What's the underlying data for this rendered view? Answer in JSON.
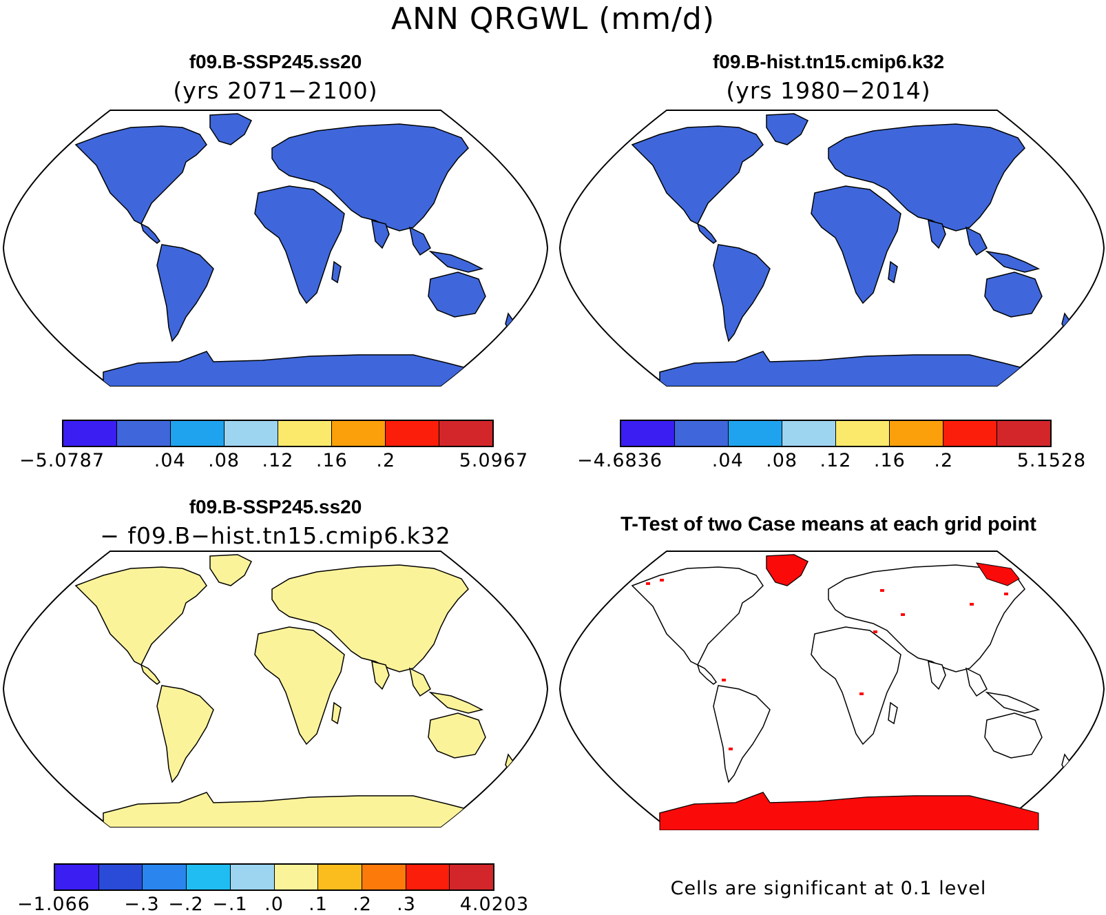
{
  "figure": {
    "title": "ANN QRGWL (mm/d)"
  },
  "panels": [
    {
      "id": "case1",
      "title": "f09.B-SSP245.ss20",
      "subtitle": "(yrs 2071−2100)",
      "land_color": "#3f67db",
      "colorbar": {
        "colors": [
          "#3a1ef2",
          "#3f67db",
          "#1fa3ee",
          "#9dd4f0",
          "#fbe96b",
          "#fba00b",
          "#fb1e0a",
          "#d3262a"
        ],
        "labels": [
          "−5.0787",
          ".04",
          ".08",
          ".12",
          ".16",
          ".2",
          "5.0967"
        ]
      }
    },
    {
      "id": "case2",
      "title": "f09.B-hist.tn15.cmip6.k32",
      "subtitle": "(yrs 1980−2014)",
      "land_color": "#3f67db",
      "colorbar": {
        "colors": [
          "#3a1ef2",
          "#3f67db",
          "#1fa3ee",
          "#9dd4f0",
          "#fbe96b",
          "#fba00b",
          "#fb1e0a",
          "#d3262a"
        ],
        "labels": [
          "−4.6836",
          ".04",
          ".08",
          ".12",
          ".16",
          ".2",
          "5.1528"
        ]
      }
    },
    {
      "id": "diff",
      "title": "f09.B-SSP245.ss20",
      "subtitle": "− f09.B−hist.tn15.cmip6.k32",
      "land_color": "#fbf39a",
      "colorbar": {
        "colors": [
          "#3a1ef2",
          "#2a4bd8",
          "#2a86ee",
          "#1fbdf2",
          "#9dd4f0",
          "#fbf39a",
          "#fbbd1e",
          "#fb7a0a",
          "#fb1e0a",
          "#d3262a"
        ],
        "labels": [
          "−1.066",
          "−.3",
          "−.2",
          "−.1",
          ".0",
          ".1",
          ".2",
          ".3",
          "4.0203"
        ]
      }
    },
    {
      "id": "ttest",
      "title": "T-Test of two Case means at each grid point",
      "note": "Cells are significant at 0.1 level",
      "land_color": "#ffffff",
      "sig_color": "#fb0a0a"
    }
  ]
}
